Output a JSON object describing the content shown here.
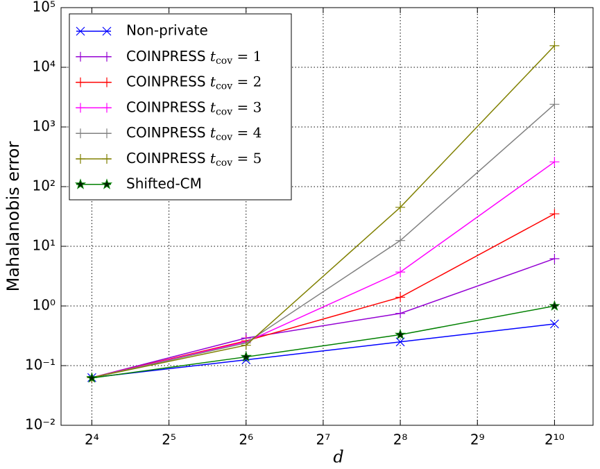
{
  "chart_data": {
    "type": "line",
    "xlabel": "d",
    "ylabel": "Mahalanobis error",
    "x": [
      16,
      64,
      256,
      1024
    ],
    "xscale": "log",
    "yscale": "log",
    "xlim": [
      12.13,
      1448
    ],
    "ylim": [
      0.01,
      100000
    ],
    "xticks": [
      {
        "value": 16,
        "label": "2⁴"
      },
      {
        "value": 32,
        "label": "2⁵"
      },
      {
        "value": 64,
        "label": "2⁶"
      },
      {
        "value": 128,
        "label": "2⁷"
      },
      {
        "value": 256,
        "label": "2⁸"
      },
      {
        "value": 512,
        "label": "2⁹"
      },
      {
        "value": 1024,
        "label": "2¹⁰"
      }
    ],
    "yticks": [
      {
        "value": 0.01,
        "label": "10⁻²"
      },
      {
        "value": 0.1,
        "label": "10⁻¹"
      },
      {
        "value": 1,
        "label": "10⁰"
      },
      {
        "value": 10,
        "label": "10¹"
      },
      {
        "value": 100,
        "label": "10²"
      },
      {
        "value": 1000,
        "label": "10³"
      },
      {
        "value": 10000,
        "label": "10⁴"
      },
      {
        "value": 100000,
        "label": "10⁵"
      }
    ],
    "grid": true,
    "legend": "upper left",
    "series": [
      {
        "name": "Non-private",
        "color": "#0000ff",
        "marker": "x",
        "values": [
          0.063,
          0.125,
          0.25,
          0.5
        ]
      },
      {
        "name": "COINPRESS tcov = 1",
        "color": "#9400d3",
        "marker": "+",
        "values": [
          0.063,
          0.29,
          0.75,
          6.2
        ]
      },
      {
        "name": "COINPRESS tcov = 2",
        "color": "#ff0000",
        "marker": "+",
        "values": [
          0.063,
          0.26,
          1.4,
          35
        ]
      },
      {
        "name": "COINPRESS tcov = 3",
        "color": "#ff00ff",
        "marker": "+",
        "values": [
          0.063,
          0.25,
          3.7,
          260
        ]
      },
      {
        "name": "COINPRESS tcov = 4",
        "color": "#808080",
        "marker": "+",
        "values": [
          0.063,
          0.24,
          12.5,
          2400
        ]
      },
      {
        "name": "COINPRESS tcov = 5",
        "color": "#808000",
        "marker": "+",
        "values": [
          0.063,
          0.22,
          45,
          23000
        ]
      },
      {
        "name": "Shifted-CM",
        "color": "#008000",
        "marker": "*",
        "values": [
          0.062,
          0.14,
          0.33,
          1.0
        ]
      }
    ]
  }
}
